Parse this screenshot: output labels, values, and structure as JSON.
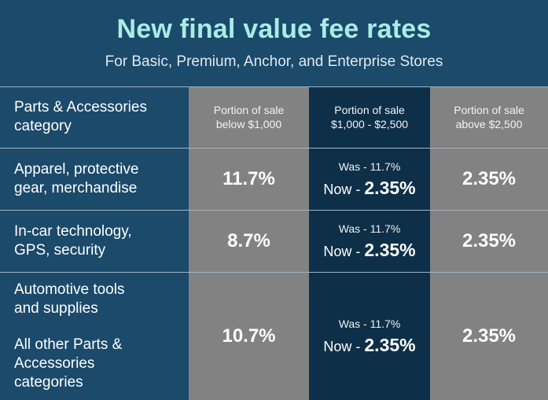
{
  "header": {
    "title": "New final value fee rates",
    "subtitle": "For Basic, Premium, Anchor, and Enterprise Stores"
  },
  "table": {
    "columns": [
      {
        "line1": "Parts & Accessories",
        "line2": "category"
      },
      {
        "line1": "Portion of sale",
        "line2": "below $1,000"
      },
      {
        "line1": "Portion of sale",
        "line2": "$1,000 - $2,500"
      },
      {
        "line1": "Portion of sale",
        "line2": "above $2,500"
      }
    ],
    "rows": [
      {
        "category_lines": [
          "Apparel, protective",
          "gear, merchandise"
        ],
        "below": "11.7%",
        "mid_was": "Was - 11.7%",
        "mid_now_prefix": "Now - ",
        "mid_now_value": "2.35%",
        "above": "2.35%"
      },
      {
        "category_lines": [
          "In-car technology,",
          "GPS, security"
        ],
        "below": "8.7%",
        "mid_was": "Was - 11.7%",
        "mid_now_prefix": "Now - ",
        "mid_now_value": "2.35%",
        "above": "2.35%"
      },
      {
        "category_lines_a": [
          "Automotive tools",
          "and supplies"
        ],
        "category_lines_b": [
          "All other Parts &",
          "Accessories",
          "categories"
        ],
        "below": "10.7%",
        "mid_was": "Was - 11.7%",
        "mid_now_prefix": "Now - ",
        "mid_now_value": "2.35%",
        "above": "2.35%"
      }
    ]
  },
  "colors": {
    "background": "#1b4a6b",
    "title": "#a9ece6",
    "gray_cell": "#828282",
    "dark_cell": "#0e2f48"
  }
}
